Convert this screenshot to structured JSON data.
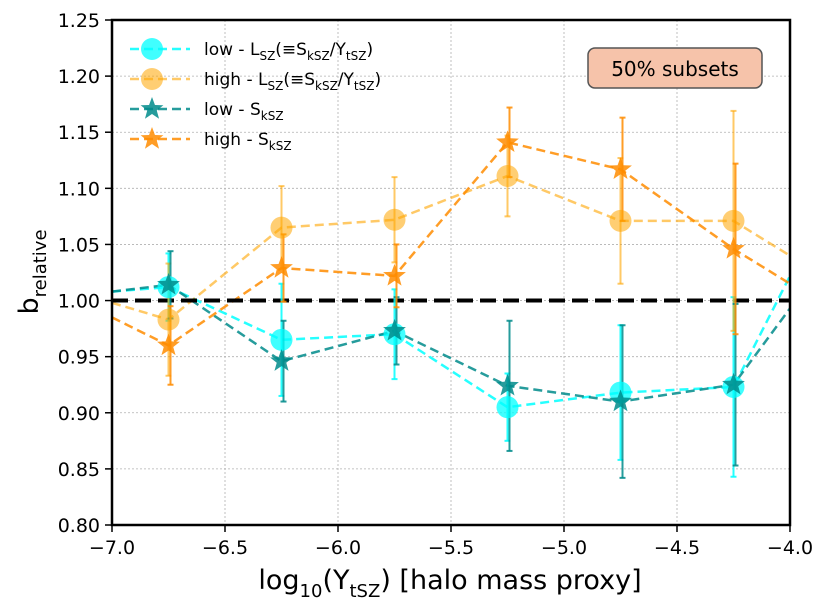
{
  "chart_data": {
    "type": "line",
    "xlabel_main": "log",
    "xlabel_sub": "10",
    "xlabel_paren": "(Y",
    "xlabel_paren_sub": "tSZ",
    "xlabel_rest": ") [halo mass proxy]",
    "ylabel_main": "b",
    "ylabel_sub": "relative",
    "xlim": [
      -7.0,
      -4.0
    ],
    "ylim": [
      0.8,
      1.25
    ],
    "xticks": [
      -7.0,
      -6.5,
      -6.0,
      -5.5,
      -5.0,
      -4.5,
      -4.0
    ],
    "xtick_labels": [
      "−7.0",
      "−6.5",
      "−6.0",
      "−5.5",
      "−5.0",
      "−4.5",
      "−4.0"
    ],
    "yticks": [
      0.8,
      0.85,
      0.9,
      0.95,
      1.0,
      1.05,
      1.1,
      1.15,
      1.2,
      1.25
    ],
    "ytick_labels": [
      "0.80",
      "0.85",
      "0.90",
      "0.95",
      "1.00",
      "1.05",
      "1.10",
      "1.15",
      "1.20",
      "1.25"
    ],
    "grid": true,
    "reference_line": 1.0,
    "annotation": "50% subsets",
    "colors": {
      "low_lsz": "#00ffff",
      "high_lsz": "#ffa500",
      "low_skz": "#008b8b",
      "high_skz": "#ff8c00",
      "annotation_face": "#f6c3aa",
      "annotation_edge": "#555555"
    },
    "series": [
      {
        "key": "low_lsz",
        "legend": {
          "pre": "low - L",
          "sub": "SZ",
          "mid": "(≡S",
          "sub2": "kSZ",
          "mid2": "/Y",
          "sub3": "tSZ",
          "post": ")"
        },
        "marker": "circle",
        "x": [
          -7.0,
          -6.75,
          -6.25,
          -5.75,
          -5.25,
          -4.75,
          -4.25,
          -4.0
        ],
        "y": [
          1.008,
          1.012,
          0.965,
          0.97,
          0.905,
          0.918,
          0.923,
          1.022
        ],
        "err": [
          null,
          0.03,
          0.05,
          0.04,
          0.03,
          0.06,
          0.08,
          null
        ]
      },
      {
        "key": "high_lsz",
        "legend": {
          "pre": "high - L",
          "sub": "SZ",
          "mid": "(≡S",
          "sub2": "kSZ",
          "mid2": "/Y",
          "sub3": "tSZ",
          "post": ")"
        },
        "marker": "circle",
        "x": [
          -7.0,
          -6.75,
          -6.25,
          -5.75,
          -5.25,
          -4.75,
          -4.25,
          -4.0
        ],
        "y": [
          0.998,
          0.983,
          1.065,
          1.072,
          1.111,
          1.071,
          1.071,
          1.04
        ],
        "err": [
          null,
          0.05,
          0.037,
          0.038,
          0.036,
          0.056,
          0.098,
          null
        ]
      },
      {
        "key": "low_skz",
        "legend": {
          "pre": "low - S",
          "sub": "kSZ"
        },
        "marker": "star",
        "x": [
          -7.0,
          -6.75,
          -6.25,
          -5.75,
          -5.25,
          -4.75,
          -4.25,
          -4.0
        ],
        "y": [
          1.008,
          1.014,
          0.946,
          0.973,
          0.924,
          0.91,
          0.925,
          0.993
        ],
        "err": [
          null,
          0.03,
          0.036,
          0.03,
          0.058,
          0.068,
          0.072,
          null
        ]
      },
      {
        "key": "high_skz",
        "legend": {
          "pre": "high - S",
          "sub": "kSZ"
        },
        "marker": "star",
        "x": [
          -7.0,
          -6.75,
          -6.25,
          -5.75,
          -5.25,
          -4.75,
          -4.25,
          -4.0
        ],
        "y": [
          0.985,
          0.96,
          1.029,
          1.022,
          1.141,
          1.117,
          1.046,
          1.015
        ],
        "err": [
          null,
          0.035,
          0.03,
          0.028,
          0.031,
          0.046,
          0.076,
          null
        ]
      }
    ]
  }
}
